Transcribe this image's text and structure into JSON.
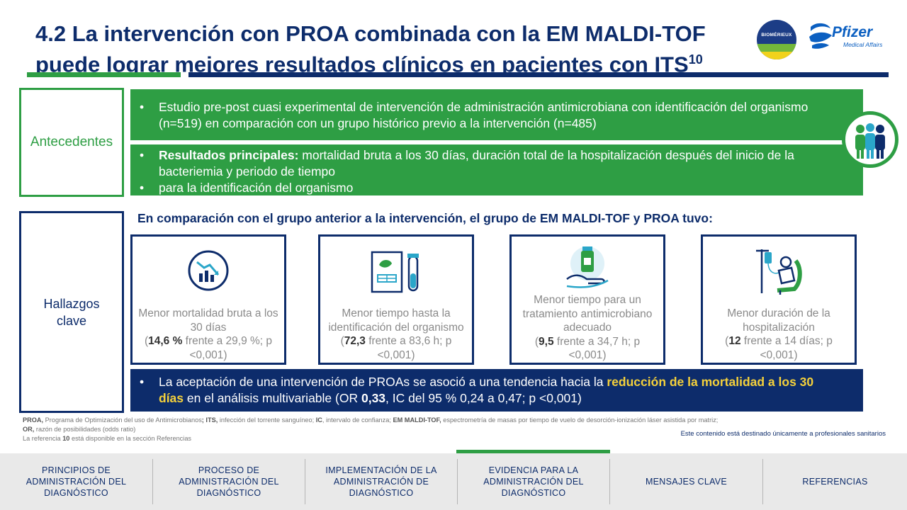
{
  "header": {
    "title_line1": "4.2 La intervención con PROA combinada con la EM MALDI-TOF",
    "title_line2": "puede lograr mejores resultados clínicos en pacientes con ITS",
    "title_sup": "10",
    "logo_biomerieux": "BIOMÉRIEUX",
    "logo_pfizer": "Pfizer",
    "logo_pfizer_sub": "Medical Affairs"
  },
  "antecedentes": {
    "label": "Antecedentes",
    "bullet1": "Estudio pre-post cuasi experimental de intervención de administración antimicrobiana con identificación del organismo (n=519) en comparación con un grupo histórico previo a la intervención (n=485)",
    "bullet2_bold": "Resultados principales:",
    "bullet2_rest": " mortalidad bruta a los 30 días, duración total de la hospitalización después del inicio de la bacteriemia y periodo de tiempo",
    "bullet3": "para la identificación del organismo"
  },
  "hallazgos": {
    "label": "Hallazgos clave",
    "comparison": "En comparación con el grupo anterior a la intervención, el grupo de EM MALDI-TOF y PROA tuvo:",
    "cards": [
      {
        "text": "Menor mortalidad bruta a los 30 días",
        "open": "(",
        "bold": "14,6 %",
        "rest": " frente a 29,9 %; p <0,001)"
      },
      {
        "text": "Menor tiempo hasta la identificación del organismo",
        "open": "(",
        "bold": "72,3",
        "rest": " frente a 83,6 h; p <0,001)"
      },
      {
        "text": "Menor tiempo para un tratamiento antimicrobiano adecuado",
        "open": "(",
        "bold": "9,5",
        "rest": " frente a 34,7 h; p <0,001)"
      },
      {
        "text": "Menor duración de la hospitalización",
        "open": "(",
        "bold": "12",
        "rest": " frente a 14 días; p <0,001)"
      }
    ],
    "multivariable_pre": "La aceptación de una intervención de PROAs se asoció a una tendencia hacia la ",
    "multivariable_highlight": "reducción de la mortalidad a los 30 días",
    "multivariable_mid": " en el análisis multivariable (OR ",
    "multivariable_or": "0,33",
    "multivariable_post": ", IC del 95 % 0,24 a 0,47; p <0,001)"
  },
  "footer": {
    "abbr_proa": "PROA,",
    "abbr_proa_def": " Programa de Optimización del uso de Antimicrobianos",
    "abbr_its": "; ITS,",
    "abbr_its_def": " infección del torrente sanguíneo; ",
    "abbr_ic": "IC",
    "abbr_ic_def": ", intervalo de confianza; ",
    "abbr_em": "EM MALDI-TOF,",
    "abbr_em_def": " espectrometría de masas por tiempo de vuelo de desorción-ionización láser asistida por matriz;",
    "abbr_or": "OR,",
    "abbr_or_def": " razón de posibilidades (odds ratio)",
    "ref_pre": "La referencia ",
    "ref_num": "10",
    "ref_post": " está disponible en la sección Referencias",
    "disclaimer": "Este contenido está destinado únicamente a profesionales sanitarios"
  },
  "nav": {
    "items": [
      "PRINCIPIOS DE ADMINISTRACIÓN DEL DIAGNÓSTICO",
      "PROCESO DE ADMINISTRACIÓN DEL DIAGNÓSTICO",
      "IMPLEMENTACIÓN DE LA ADMINISTRACIÓN DE DIAGNÓSTICO",
      "EVIDENCIA PARA LA ADMINISTRACIÓN DEL DIAGNÓSTICO",
      "MENSAJES CLAVE",
      "REFERENCIAS"
    ],
    "active_index": 3
  },
  "colors": {
    "navy": "#0d2c6b",
    "green": "#2e9e44",
    "highlight": "#f5d13b"
  }
}
